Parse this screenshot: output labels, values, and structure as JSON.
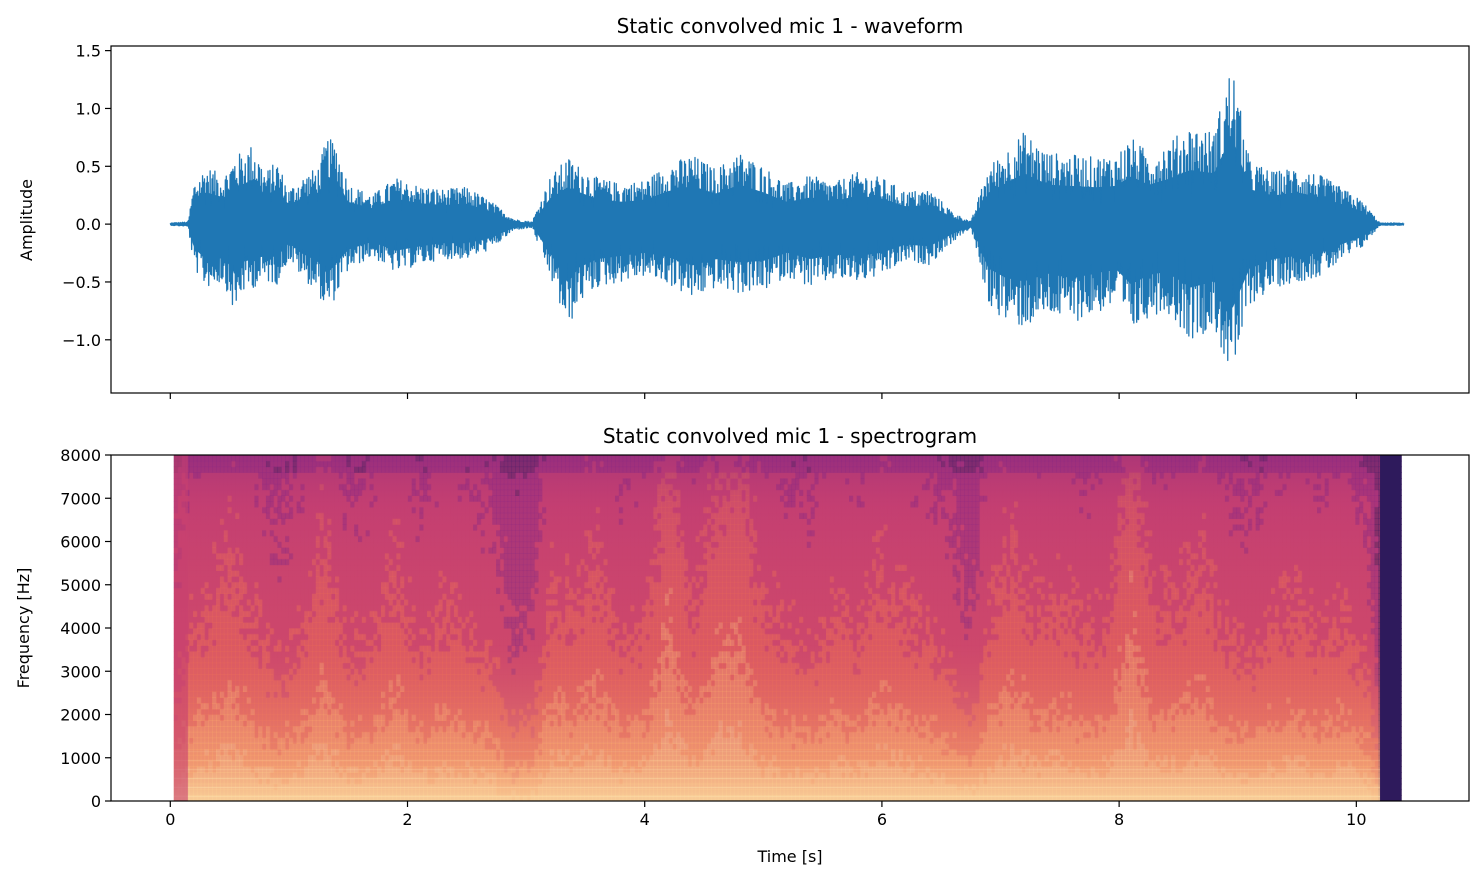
{
  "chart_data": [
    {
      "type": "line",
      "title": "Static convolved mic 1 - waveform",
      "xlabel": "",
      "ylabel": "Amplitude",
      "xlim": [
        -0.5,
        10.95
      ],
      "ylim": [
        -1.46,
        1.54
      ],
      "x_ticks": [
        0,
        2,
        4,
        6,
        8,
        10
      ],
      "x_ticklabels_shown": false,
      "y_ticks": [
        -1.0,
        -0.5,
        0.0,
        0.5,
        1.0,
        1.5
      ],
      "y_ticklabels": [
        "−1.0",
        "−0.5",
        "0.0",
        "0.5",
        "1.0",
        "1.5"
      ],
      "line_color": "#1f77b4",
      "envelope": {
        "x": [
          0.0,
          0.15,
          0.2,
          0.3,
          0.45,
          0.55,
          0.6,
          0.7,
          0.8,
          0.9,
          1.0,
          1.1,
          1.25,
          1.32,
          1.4,
          1.5,
          1.7,
          1.9,
          2.1,
          2.3,
          2.5,
          2.7,
          2.9,
          3.05,
          3.2,
          3.35,
          3.45,
          3.6,
          3.8,
          4.0,
          4.2,
          4.4,
          4.6,
          4.8,
          5.0,
          5.2,
          5.4,
          5.6,
          5.8,
          6.0,
          6.2,
          6.4,
          6.6,
          6.75,
          6.9,
          7.05,
          7.2,
          7.4,
          7.6,
          7.8,
          7.97,
          8.1,
          8.25,
          8.4,
          8.6,
          8.8,
          8.95,
          9.1,
          9.3,
          9.5,
          9.7,
          9.9,
          10.05,
          10.2,
          10.4
        ],
        "upper": [
          0.01,
          0.02,
          0.36,
          0.5,
          0.42,
          0.6,
          0.62,
          0.7,
          0.45,
          0.55,
          0.3,
          0.4,
          0.5,
          0.75,
          0.7,
          0.35,
          0.25,
          0.4,
          0.33,
          0.3,
          0.32,
          0.2,
          0.04,
          0.02,
          0.4,
          0.58,
          0.5,
          0.4,
          0.35,
          0.38,
          0.52,
          0.6,
          0.48,
          0.62,
          0.5,
          0.35,
          0.42,
          0.36,
          0.45,
          0.4,
          0.28,
          0.3,
          0.1,
          0.02,
          0.5,
          0.65,
          0.8,
          0.62,
          0.6,
          0.58,
          0.6,
          0.75,
          0.62,
          0.7,
          0.85,
          0.8,
          1.4,
          0.55,
          0.45,
          0.5,
          0.42,
          0.3,
          0.2,
          0.01,
          0.01
        ],
        "lower": [
          -0.01,
          -0.02,
          -0.38,
          -0.55,
          -0.5,
          -0.8,
          -0.6,
          -0.55,
          -0.5,
          -0.52,
          -0.3,
          -0.45,
          -0.6,
          -0.78,
          -0.62,
          -0.4,
          -0.28,
          -0.42,
          -0.35,
          -0.3,
          -0.3,
          -0.22,
          -0.05,
          -0.03,
          -0.45,
          -0.92,
          -0.68,
          -0.55,
          -0.5,
          -0.45,
          -0.52,
          -0.65,
          -0.55,
          -0.6,
          -0.58,
          -0.45,
          -0.55,
          -0.48,
          -0.5,
          -0.45,
          -0.32,
          -0.35,
          -0.15,
          -0.03,
          -0.7,
          -0.85,
          -0.9,
          -0.78,
          -0.85,
          -0.78,
          -0.7,
          -0.95,
          -0.8,
          -0.75,
          -1.0,
          -0.9,
          -1.35,
          -0.7,
          -0.55,
          -0.5,
          -0.45,
          -0.3,
          -0.2,
          -0.01,
          -0.01
        ]
      }
    },
    {
      "type": "heatmap",
      "title": "Static convolved mic 1 - spectrogram",
      "xlabel": "Time [s]",
      "ylabel": "Frequency [Hz]",
      "xlim": [
        -0.5,
        10.95
      ],
      "ylim": [
        0,
        8000
      ],
      "x_ticks": [
        0,
        2,
        4,
        6,
        8,
        10
      ],
      "x_ticklabels": [
        "0",
        "2",
        "4",
        "6",
        "8",
        "10"
      ],
      "y_ticks": [
        0,
        1000,
        2000,
        3000,
        4000,
        5000,
        6000,
        7000,
        8000
      ],
      "y_ticklabels": [
        "0",
        "1000",
        "2000",
        "3000",
        "4000",
        "5000",
        "6000",
        "7000",
        "8000"
      ],
      "colormap": "magma",
      "time_range": [
        0.03,
        10.38
      ],
      "colors": {
        "low": "#2e1a5c",
        "mid_low": "#8c2981",
        "mid": "#c8416f",
        "mid_high": "#e8685a",
        "high": "#f9a86e",
        "peak": "#fcd89b"
      },
      "energy_profile": {
        "t": [
          0.03,
          0.15,
          0.3,
          0.5,
          0.7,
          0.9,
          1.1,
          1.3,
          1.5,
          1.7,
          1.9,
          2.1,
          2.3,
          2.5,
          2.7,
          2.9,
          3.05,
          3.2,
          3.4,
          3.6,
          3.8,
          4.0,
          4.2,
          4.4,
          4.6,
          4.8,
          5.0,
          5.2,
          5.4,
          5.6,
          5.8,
          6.0,
          6.2,
          6.4,
          6.6,
          6.75,
          6.9,
          7.1,
          7.3,
          7.5,
          7.7,
          7.9,
          8.1,
          8.3,
          8.5,
          8.7,
          8.9,
          9.1,
          9.3,
          9.5,
          9.7,
          9.9,
          10.1,
          10.2,
          10.38
        ],
        "level": [
          0.35,
          0.55,
          0.62,
          0.7,
          0.6,
          0.45,
          0.55,
          0.75,
          0.5,
          0.55,
          0.7,
          0.5,
          0.62,
          0.55,
          0.5,
          0.25,
          0.3,
          0.65,
          0.62,
          0.72,
          0.55,
          0.6,
          0.9,
          0.6,
          0.82,
          0.85,
          0.62,
          0.55,
          0.5,
          0.62,
          0.55,
          0.7,
          0.6,
          0.55,
          0.45,
          0.3,
          0.6,
          0.72,
          0.6,
          0.65,
          0.55,
          0.6,
          0.9,
          0.6,
          0.62,
          0.7,
          0.55,
          0.5,
          0.58,
          0.62,
          0.55,
          0.6,
          0.45,
          0.0,
          0.0
        ]
      }
    }
  ]
}
